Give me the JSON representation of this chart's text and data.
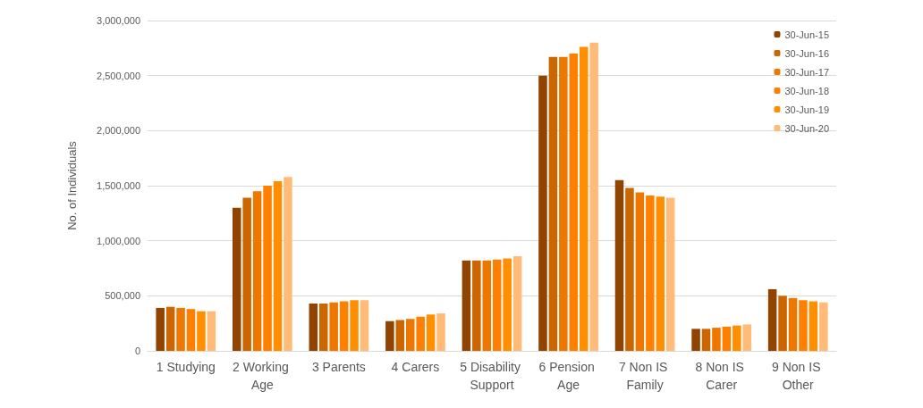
{
  "chart_data": {
    "type": "bar",
    "ylabel": "No. of Individuals",
    "categories": [
      "1 Studying",
      "2 Working Age",
      "3 Parents",
      "4 Carers",
      "5 Disability Support",
      "6 Pension Age",
      "7 Non IS Family",
      "8 Non IS Carer",
      "9 Non IS Other"
    ],
    "series": [
      {
        "name": "30-Jun-15",
        "color": "#914400",
        "values": [
          390000,
          1300000,
          430000,
          270000,
          820000,
          2500000,
          1550000,
          200000,
          560000
        ]
      },
      {
        "name": "30-Jun-16",
        "color": "#cc6600",
        "values": [
          400000,
          1390000,
          430000,
          280000,
          820000,
          2670000,
          1480000,
          200000,
          500000
        ]
      },
      {
        "name": "30-Jun-17",
        "color": "#ee7700",
        "values": [
          390000,
          1450000,
          440000,
          290000,
          820000,
          2670000,
          1440000,
          210000,
          480000
        ]
      },
      {
        "name": "30-Jun-18",
        "color": "#ff8000",
        "values": [
          380000,
          1500000,
          450000,
          310000,
          830000,
          2700000,
          1410000,
          220000,
          460000
        ]
      },
      {
        "name": "30-Jun-19",
        "color": "#ff8f00",
        "values": [
          360000,
          1540000,
          460000,
          330000,
          840000,
          2760000,
          1400000,
          230000,
          450000
        ]
      },
      {
        "name": "30-Jun-20",
        "color": "#ffbb77",
        "values": [
          360000,
          1580000,
          460000,
          340000,
          860000,
          2800000,
          1390000,
          240000,
          440000
        ]
      }
    ],
    "ylim": [
      0,
      3000000
    ],
    "yticks": [
      0,
      {
        "value": 500000,
        "label": "500,000"
      },
      {
        "value": 1000000,
        "label": "1,000,000"
      },
      {
        "value": 1500000,
        "label": "1,500,000"
      },
      {
        "value": 2000000,
        "label": "2,000,000"
      },
      {
        "value": 2500000,
        "label": "2,500,000"
      },
      {
        "value": 3000000,
        "label": "3,000,000"
      }
    ],
    "grid": "y",
    "legend": "top right"
  }
}
